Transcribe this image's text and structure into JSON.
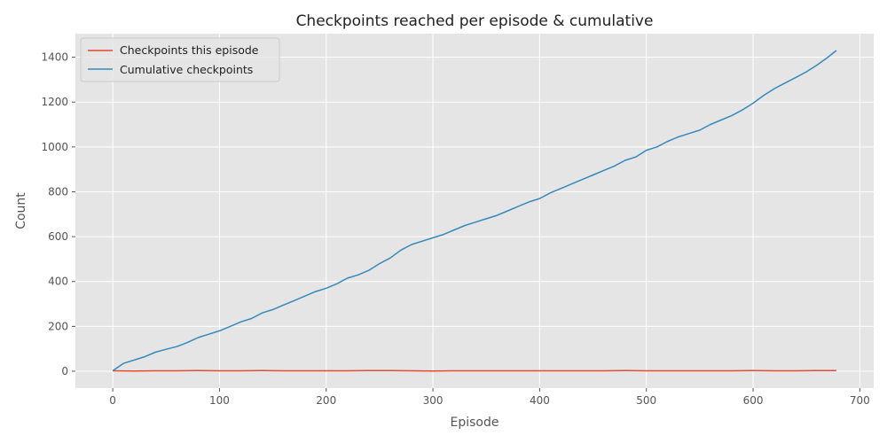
{
  "chart_data": {
    "type": "line",
    "title": "Checkpoints reached per episode & cumulative",
    "xlabel": "Episode",
    "ylabel": "Count",
    "xlim": [
      -35,
      713
    ],
    "ylim": [
      -75,
      1505
    ],
    "xticks": [
      0,
      100,
      200,
      300,
      400,
      500,
      600,
      700
    ],
    "yticks": [
      0,
      200,
      400,
      600,
      800,
      1000,
      1200,
      1400
    ],
    "grid": true,
    "legend": "top-left",
    "series": [
      {
        "name": "Checkpoints this episode",
        "color": "#e24a33",
        "x": [
          0,
          20,
          40,
          60,
          80,
          100,
          120,
          140,
          160,
          180,
          200,
          220,
          240,
          260,
          280,
          300,
          320,
          340,
          360,
          380,
          400,
          420,
          440,
          460,
          480,
          500,
          520,
          540,
          560,
          580,
          600,
          620,
          640,
          660,
          678
        ],
        "y": [
          2,
          1,
          2,
          2,
          3,
          2,
          2,
          3,
          2,
          2,
          2,
          2,
          3,
          3,
          2,
          1,
          2,
          2,
          2,
          2,
          2,
          2,
          2,
          2,
          3,
          2,
          2,
          2,
          2,
          2,
          3,
          2,
          2,
          3,
          3
        ]
      },
      {
        "name": "Cumulative checkpoints",
        "color": "#348abd",
        "x": [
          0,
          10,
          20,
          30,
          40,
          50,
          60,
          70,
          80,
          90,
          100,
          110,
          120,
          130,
          140,
          150,
          160,
          170,
          180,
          190,
          200,
          210,
          220,
          230,
          240,
          250,
          260,
          270,
          280,
          290,
          300,
          310,
          320,
          330,
          340,
          350,
          360,
          370,
          380,
          390,
          400,
          410,
          420,
          430,
          440,
          450,
          460,
          470,
          480,
          490,
          500,
          510,
          520,
          530,
          540,
          550,
          560,
          570,
          580,
          590,
          600,
          610,
          620,
          630,
          640,
          650,
          660,
          670,
          678
        ],
        "y": [
          2,
          35,
          50,
          65,
          85,
          98,
          110,
          128,
          150,
          165,
          180,
          200,
          220,
          235,
          260,
          275,
          295,
          315,
          335,
          355,
          370,
          390,
          415,
          430,
          450,
          480,
          505,
          540,
          565,
          580,
          595,
          610,
          630,
          650,
          665,
          680,
          695,
          715,
          735,
          755,
          770,
          795,
          815,
          835,
          855,
          875,
          895,
          915,
          940,
          955,
          985,
          1000,
          1025,
          1045,
          1060,
          1075,
          1100,
          1120,
          1140,
          1165,
          1195,
          1230,
          1260,
          1285,
          1310,
          1335,
          1365,
          1400,
          1430
        ]
      }
    ]
  }
}
